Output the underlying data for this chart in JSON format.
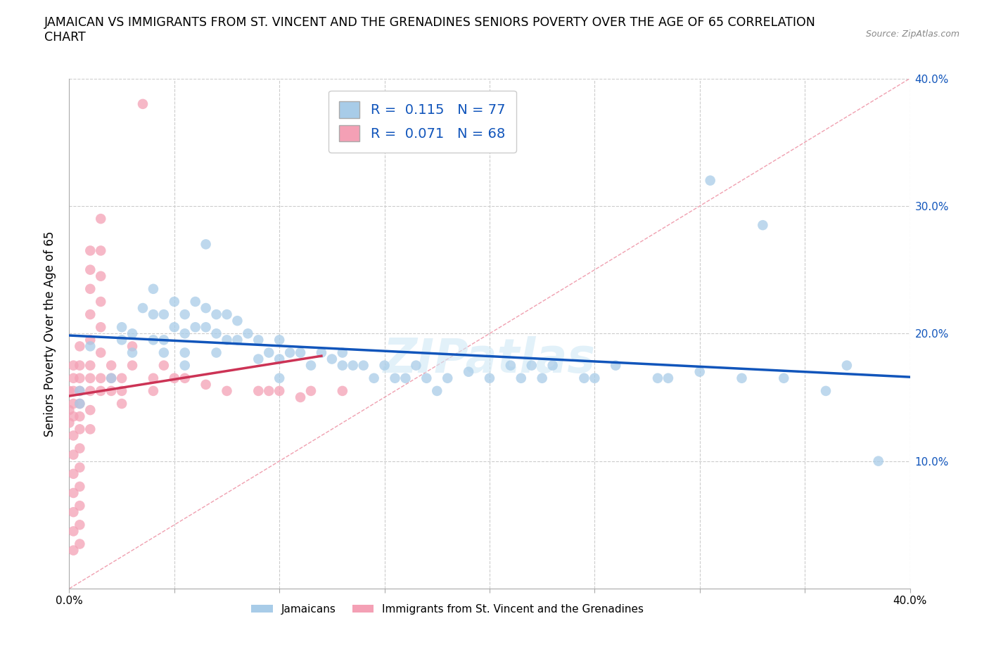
{
  "title": "JAMAICAN VS IMMIGRANTS FROM ST. VINCENT AND THE GRENADINES SENIORS POVERTY OVER THE AGE OF 65 CORRELATION\nCHART",
  "source": "Source: ZipAtlas.com",
  "ylabel": "Seniors Poverty Over the Age of 65",
  "xlim": [
    0.0,
    0.4
  ],
  "ylim": [
    0.0,
    0.4
  ],
  "r_blue": 0.115,
  "n_blue": 77,
  "r_pink": 0.071,
  "n_pink": 68,
  "blue_color": "#a8cce8",
  "pink_color": "#f4a0b5",
  "trend_blue_color": "#1155bb",
  "trend_pink_color": "#cc3355",
  "diagonal_color": "#f0a0b0",
  "grid_color": "#cccccc",
  "legend_label_blue": "Jamaicans",
  "legend_label_pink": "Immigrants from St. Vincent and the Grenadines",
  "blue_points": [
    [
      0.005,
      0.155
    ],
    [
      0.005,
      0.145
    ],
    [
      0.01,
      0.19
    ],
    [
      0.02,
      0.165
    ],
    [
      0.025,
      0.205
    ],
    [
      0.025,
      0.195
    ],
    [
      0.03,
      0.2
    ],
    [
      0.03,
      0.185
    ],
    [
      0.035,
      0.22
    ],
    [
      0.04,
      0.235
    ],
    [
      0.04,
      0.215
    ],
    [
      0.04,
      0.195
    ],
    [
      0.045,
      0.215
    ],
    [
      0.045,
      0.195
    ],
    [
      0.045,
      0.185
    ],
    [
      0.05,
      0.225
    ],
    [
      0.05,
      0.205
    ],
    [
      0.055,
      0.215
    ],
    [
      0.055,
      0.2
    ],
    [
      0.055,
      0.185
    ],
    [
      0.055,
      0.175
    ],
    [
      0.06,
      0.225
    ],
    [
      0.06,
      0.205
    ],
    [
      0.065,
      0.27
    ],
    [
      0.065,
      0.22
    ],
    [
      0.065,
      0.205
    ],
    [
      0.07,
      0.215
    ],
    [
      0.07,
      0.2
    ],
    [
      0.07,
      0.185
    ],
    [
      0.075,
      0.215
    ],
    [
      0.075,
      0.195
    ],
    [
      0.08,
      0.21
    ],
    [
      0.08,
      0.195
    ],
    [
      0.085,
      0.2
    ],
    [
      0.09,
      0.195
    ],
    [
      0.09,
      0.18
    ],
    [
      0.095,
      0.185
    ],
    [
      0.1,
      0.195
    ],
    [
      0.1,
      0.18
    ],
    [
      0.1,
      0.165
    ],
    [
      0.105,
      0.185
    ],
    [
      0.11,
      0.185
    ],
    [
      0.115,
      0.175
    ],
    [
      0.12,
      0.185
    ],
    [
      0.125,
      0.18
    ],
    [
      0.13,
      0.185
    ],
    [
      0.13,
      0.175
    ],
    [
      0.135,
      0.175
    ],
    [
      0.14,
      0.175
    ],
    [
      0.145,
      0.165
    ],
    [
      0.15,
      0.175
    ],
    [
      0.155,
      0.165
    ],
    [
      0.16,
      0.165
    ],
    [
      0.165,
      0.175
    ],
    [
      0.17,
      0.165
    ],
    [
      0.175,
      0.155
    ],
    [
      0.18,
      0.165
    ],
    [
      0.19,
      0.17
    ],
    [
      0.2,
      0.165
    ],
    [
      0.21,
      0.175
    ],
    [
      0.215,
      0.165
    ],
    [
      0.22,
      0.175
    ],
    [
      0.225,
      0.165
    ],
    [
      0.23,
      0.175
    ],
    [
      0.245,
      0.165
    ],
    [
      0.25,
      0.165
    ],
    [
      0.26,
      0.175
    ],
    [
      0.28,
      0.165
    ],
    [
      0.285,
      0.165
    ],
    [
      0.3,
      0.17
    ],
    [
      0.305,
      0.32
    ],
    [
      0.32,
      0.165
    ],
    [
      0.33,
      0.285
    ],
    [
      0.34,
      0.165
    ],
    [
      0.36,
      0.155
    ],
    [
      0.37,
      0.175
    ],
    [
      0.385,
      0.1
    ]
  ],
  "pink_points": [
    [
      0.0,
      0.155
    ],
    [
      0.0,
      0.14
    ],
    [
      0.0,
      0.13
    ],
    [
      0.002,
      0.175
    ],
    [
      0.002,
      0.165
    ],
    [
      0.002,
      0.155
    ],
    [
      0.002,
      0.145
    ],
    [
      0.002,
      0.135
    ],
    [
      0.002,
      0.12
    ],
    [
      0.002,
      0.105
    ],
    [
      0.002,
      0.09
    ],
    [
      0.002,
      0.075
    ],
    [
      0.002,
      0.06
    ],
    [
      0.002,
      0.045
    ],
    [
      0.002,
      0.03
    ],
    [
      0.005,
      0.19
    ],
    [
      0.005,
      0.175
    ],
    [
      0.005,
      0.165
    ],
    [
      0.005,
      0.155
    ],
    [
      0.005,
      0.145
    ],
    [
      0.005,
      0.135
    ],
    [
      0.005,
      0.125
    ],
    [
      0.005,
      0.11
    ],
    [
      0.005,
      0.095
    ],
    [
      0.005,
      0.08
    ],
    [
      0.005,
      0.065
    ],
    [
      0.005,
      0.05
    ],
    [
      0.005,
      0.035
    ],
    [
      0.01,
      0.265
    ],
    [
      0.01,
      0.25
    ],
    [
      0.01,
      0.235
    ],
    [
      0.01,
      0.215
    ],
    [
      0.01,
      0.195
    ],
    [
      0.01,
      0.175
    ],
    [
      0.01,
      0.165
    ],
    [
      0.01,
      0.155
    ],
    [
      0.01,
      0.14
    ],
    [
      0.01,
      0.125
    ],
    [
      0.015,
      0.29
    ],
    [
      0.015,
      0.265
    ],
    [
      0.015,
      0.245
    ],
    [
      0.015,
      0.225
    ],
    [
      0.015,
      0.205
    ],
    [
      0.015,
      0.185
    ],
    [
      0.015,
      0.165
    ],
    [
      0.015,
      0.155
    ],
    [
      0.02,
      0.175
    ],
    [
      0.02,
      0.165
    ],
    [
      0.02,
      0.155
    ],
    [
      0.025,
      0.165
    ],
    [
      0.025,
      0.155
    ],
    [
      0.025,
      0.145
    ],
    [
      0.03,
      0.19
    ],
    [
      0.03,
      0.175
    ],
    [
      0.035,
      0.38
    ],
    [
      0.04,
      0.165
    ],
    [
      0.04,
      0.155
    ],
    [
      0.045,
      0.175
    ],
    [
      0.05,
      0.165
    ],
    [
      0.055,
      0.165
    ],
    [
      0.065,
      0.16
    ],
    [
      0.075,
      0.155
    ],
    [
      0.09,
      0.155
    ],
    [
      0.095,
      0.155
    ],
    [
      0.1,
      0.155
    ],
    [
      0.11,
      0.15
    ],
    [
      0.115,
      0.155
    ],
    [
      0.13,
      0.155
    ]
  ]
}
